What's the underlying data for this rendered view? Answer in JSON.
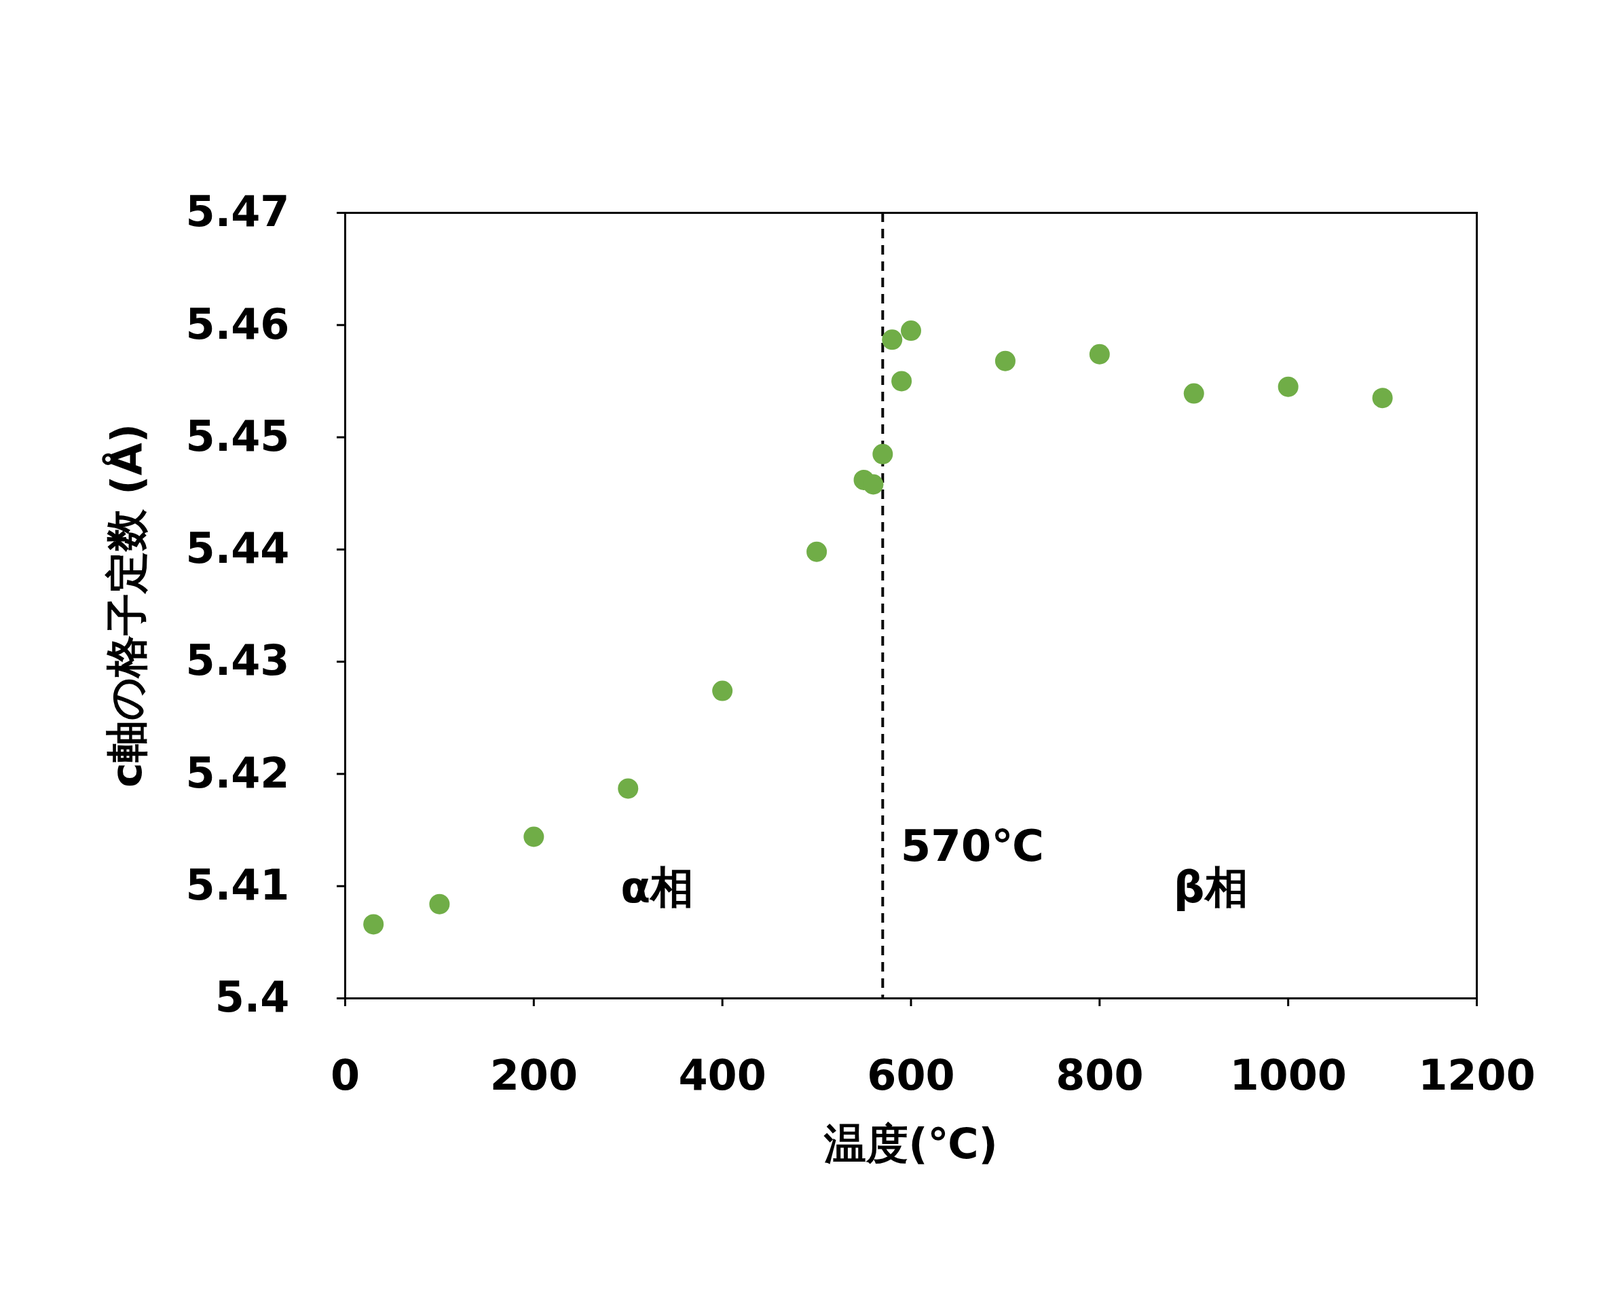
{
  "chart_data": {
    "type": "scatter",
    "x_label": "温度(℃)",
    "y_label": "c軸の格子定数 (Å)",
    "x": [
      30,
      100,
      200,
      300,
      400,
      500,
      550,
      560,
      570,
      580,
      590,
      600,
      700,
      800,
      900,
      1000,
      1100
    ],
    "values": [
      5.4066,
      5.4084,
      5.4144,
      5.4187,
      5.4274,
      5.4398,
      5.4462,
      5.4458,
      5.4485,
      5.4587,
      5.455,
      5.4595,
      5.4568,
      5.4574,
      5.4539,
      5.4545,
      5.4535
    ],
    "color": "#70ad47",
    "marker": "circle",
    "xlim": [
      0,
      1200
    ],
    "xticks": [
      0,
      200,
      400,
      600,
      800,
      1000,
      1200
    ],
    "ylim": [
      5.4,
      5.47
    ],
    "yticks": [
      5.4,
      5.41,
      5.42,
      5.43,
      5.44,
      5.45,
      5.46,
      5.47
    ],
    "grid": false,
    "vlines": [
      {
        "x": 570,
        "line_style": "dashed",
        "color": "#000000"
      }
    ],
    "annotations": [
      {
        "text": "570℃",
        "x": 665,
        "y": 5.4135
      },
      {
        "text": "α相",
        "x": 331,
        "y": 5.4098
      },
      {
        "text": "β相",
        "x": 918,
        "y": 5.4098
      }
    ]
  }
}
